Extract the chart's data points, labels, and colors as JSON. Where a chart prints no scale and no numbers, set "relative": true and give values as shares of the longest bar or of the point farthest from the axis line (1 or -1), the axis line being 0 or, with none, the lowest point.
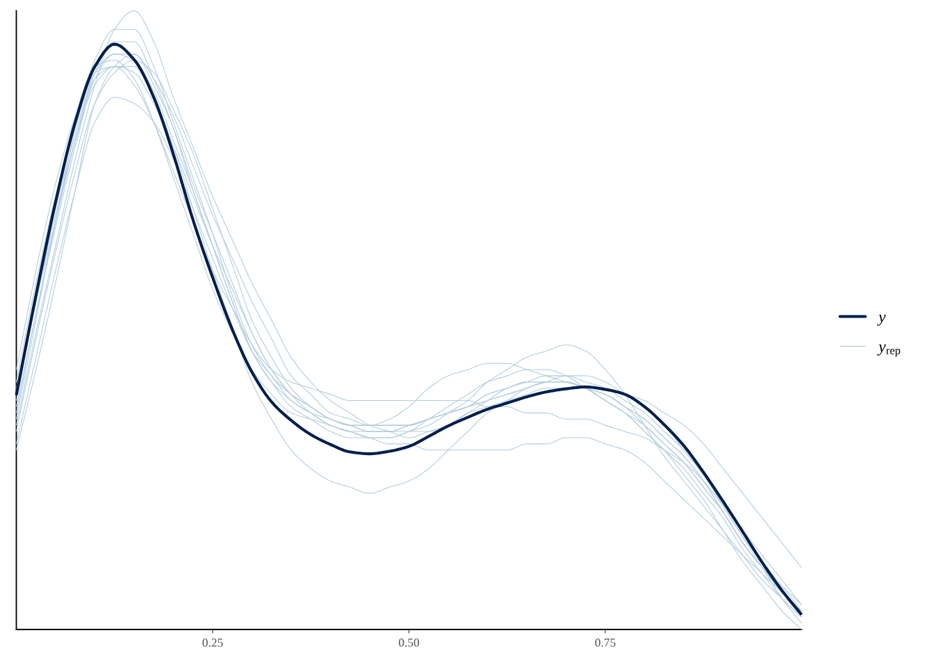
{
  "chart_data": {
    "type": "line",
    "relative": true,
    "legend": "right",
    "tick_labels": "x",
    "xlim": [
      0,
      1
    ],
    "xticks": [
      {
        "value": 0.25,
        "label": "0.25"
      },
      {
        "value": 0.5,
        "label": "0.50"
      },
      {
        "value": 0.75,
        "label": "0.75"
      }
    ],
    "x": [
      0,
      0.025,
      0.05,
      0.075,
      0.1,
      0.125,
      0.15,
      0.175,
      0.2,
      0.225,
      0.25,
      0.275,
      0.3,
      0.325,
      0.35,
      0.375,
      0.4,
      0.425,
      0.45,
      0.475,
      0.5,
      0.525,
      0.55,
      0.575,
      0.6,
      0.625,
      0.65,
      0.675,
      0.7,
      0.725,
      0.75,
      0.775,
      0.8,
      0.825,
      0.85,
      0.875,
      0.9,
      0.925,
      0.95,
      0.975,
      1
    ],
    "series": [
      {
        "name": "y",
        "color": "#011f4b",
        "values": [
          0.379,
          0.54,
          0.691,
          0.82,
          0.91,
          0.946,
          0.921,
          0.86,
          0.768,
          0.662,
          0.569,
          0.485,
          0.416,
          0.368,
          0.338,
          0.315,
          0.299,
          0.287,
          0.284,
          0.288,
          0.296,
          0.312,
          0.329,
          0.343,
          0.356,
          0.366,
          0.376,
          0.384,
          0.389,
          0.392,
          0.388,
          0.38,
          0.36,
          0.331,
          0.297,
          0.254,
          0.207,
          0.158,
          0.108,
          0.063,
          0.024
        ]
      },
      {
        "name": "y$_{rep}$",
        "color": "#b3cde0",
        "values": [
          0.33,
          0.48,
          0.62,
          0.76,
          0.88,
          0.97,
          1.0,
          0.95,
          0.86,
          0.78,
          0.7,
          0.63,
          0.56,
          0.5,
          0.44,
          0.4,
          0.37,
          0.35,
          0.33,
          0.32,
          0.31,
          0.32,
          0.33,
          0.35,
          0.37,
          0.39,
          0.4,
          0.41,
          0.41,
          0.4,
          0.39,
          0.37,
          0.35,
          0.32,
          0.29,
          0.25,
          0.2,
          0.15,
          0.11,
          0.07,
          0.03
        ]
      },
      {
        "color": "#b3cde0",
        "values": [
          0.36,
          0.51,
          0.66,
          0.81,
          0.92,
          0.97,
          0.97,
          0.91,
          0.82,
          0.73,
          0.64,
          0.54,
          0.46,
          0.41,
          0.38,
          0.36,
          0.34,
          0.33,
          0.33,
          0.33,
          0.33,
          0.34,
          0.35,
          0.36,
          0.37,
          0.38,
          0.39,
          0.4,
          0.4,
          0.39,
          0.38,
          0.36,
          0.34,
          0.31,
          0.28,
          0.24,
          0.19,
          0.14,
          0.1,
          0.07,
          0.04
        ]
      },
      {
        "color": "#b3cde0",
        "values": [
          0.3,
          0.44,
          0.58,
          0.71,
          0.82,
          0.86,
          0.85,
          0.82,
          0.76,
          0.68,
          0.6,
          0.52,
          0.45,
          0.41,
          0.37,
          0.35,
          0.33,
          0.32,
          0.31,
          0.31,
          0.32,
          0.34,
          0.36,
          0.38,
          0.4,
          0.41,
          0.42,
          0.42,
          0.41,
          0.39,
          0.37,
          0.35,
          0.32,
          0.29,
          0.26,
          0.22,
          0.18,
          0.13,
          0.09,
          0.05,
          0.02
        ]
      },
      {
        "color": "#b3cde0",
        "values": [
          0.34,
          0.5,
          0.66,
          0.79,
          0.88,
          0.91,
          0.91,
          0.86,
          0.78,
          0.68,
          0.58,
          0.49,
          0.4,
          0.34,
          0.29,
          0.26,
          0.24,
          0.23,
          0.22,
          0.23,
          0.24,
          0.26,
          0.29,
          0.32,
          0.35,
          0.37,
          0.39,
          0.4,
          0.41,
          0.41,
          0.4,
          0.38,
          0.36,
          0.33,
          0.29,
          0.25,
          0.2,
          0.15,
          0.1,
          0.05,
          0.01
        ]
      },
      {
        "color": "#b3cde0",
        "values": [
          0.38,
          0.53,
          0.68,
          0.8,
          0.9,
          0.93,
          0.92,
          0.87,
          0.79,
          0.71,
          0.62,
          0.53,
          0.45,
          0.4,
          0.36,
          0.34,
          0.32,
          0.31,
          0.31,
          0.31,
          0.32,
          0.33,
          0.35,
          0.37,
          0.4,
          0.42,
          0.44,
          0.45,
          0.46,
          0.45,
          0.42,
          0.38,
          0.33,
          0.28,
          0.24,
          0.2,
          0.16,
          0.12,
          0.08,
          0.05,
          0.02
        ]
      },
      {
        "color": "#b3cde0",
        "values": [
          0.4,
          0.56,
          0.7,
          0.81,
          0.9,
          0.91,
          0.88,
          0.82,
          0.74,
          0.66,
          0.58,
          0.52,
          0.46,
          0.42,
          0.4,
          0.39,
          0.38,
          0.37,
          0.37,
          0.37,
          0.37,
          0.37,
          0.37,
          0.37,
          0.36,
          0.36,
          0.35,
          0.35,
          0.34,
          0.34,
          0.33,
          0.32,
          0.31,
          0.29,
          0.27,
          0.24,
          0.2,
          0.16,
          0.12,
          0.08,
          0.04
        ]
      },
      {
        "color": "#b3cde0",
        "values": [
          0.37,
          0.53,
          0.67,
          0.79,
          0.89,
          0.91,
          0.9,
          0.85,
          0.78,
          0.7,
          0.62,
          0.55,
          0.48,
          0.42,
          0.38,
          0.35,
          0.33,
          0.32,
          0.31,
          0.3,
          0.3,
          0.29,
          0.29,
          0.29,
          0.29,
          0.29,
          0.3,
          0.3,
          0.31,
          0.31,
          0.3,
          0.29,
          0.27,
          0.24,
          0.21,
          0.18,
          0.15,
          0.12,
          0.09,
          0.06,
          0.03
        ]
      },
      {
        "color": "#b3cde0",
        "values": [
          0.32,
          0.47,
          0.61,
          0.74,
          0.85,
          0.9,
          0.92,
          0.9,
          0.84,
          0.77,
          0.68,
          0.59,
          0.5,
          0.44,
          0.39,
          0.36,
          0.34,
          0.33,
          0.32,
          0.32,
          0.32,
          0.32,
          0.33,
          0.35,
          0.36,
          0.37,
          0.38,
          0.39,
          0.39,
          0.39,
          0.39,
          0.38,
          0.37,
          0.35,
          0.33,
          0.3,
          0.26,
          0.22,
          0.18,
          0.14,
          0.1
        ]
      },
      {
        "color": "#b3cde0",
        "values": [
          0.42,
          0.58,
          0.72,
          0.83,
          0.91,
          0.92,
          0.89,
          0.82,
          0.73,
          0.64,
          0.55,
          0.48,
          0.42,
          0.38,
          0.35,
          0.34,
          0.33,
          0.32,
          0.32,
          0.32,
          0.33,
          0.34,
          0.35,
          0.36,
          0.38,
          0.39,
          0.4,
          0.4,
          0.4,
          0.39,
          0.38,
          0.36,
          0.33,
          0.3,
          0.27,
          0.23,
          0.19,
          0.14,
          0.1,
          0.06,
          0.02
        ]
      },
      {
        "color": "#b3cde0",
        "values": [
          0.29,
          0.42,
          0.56,
          0.71,
          0.85,
          0.91,
          0.93,
          0.89,
          0.83,
          0.75,
          0.67,
          0.6,
          0.53,
          0.47,
          0.41,
          0.38,
          0.35,
          0.34,
          0.33,
          0.33,
          0.33,
          0.34,
          0.35,
          0.36,
          0.38,
          0.39,
          0.4,
          0.4,
          0.4,
          0.39,
          0.37,
          0.35,
          0.32,
          0.29,
          0.25,
          0.21,
          0.16,
          0.11,
          0.07,
          0.03,
          0.0
        ]
      },
      {
        "color": "#b3cde0",
        "values": [
          0.35,
          0.51,
          0.65,
          0.78,
          0.89,
          0.93,
          0.93,
          0.88,
          0.81,
          0.72,
          0.64,
          0.56,
          0.48,
          0.42,
          0.38,
          0.36,
          0.34,
          0.33,
          0.32,
          0.32,
          0.33,
          0.34,
          0.35,
          0.36,
          0.37,
          0.38,
          0.39,
          0.4,
          0.4,
          0.39,
          0.38,
          0.36,
          0.34,
          0.31,
          0.28,
          0.24,
          0.19,
          0.14,
          0.1,
          0.06,
          0.03
        ]
      },
      {
        "color": "#b3cde0",
        "values": [
          0.39,
          0.53,
          0.66,
          0.79,
          0.9,
          0.95,
          0.95,
          0.89,
          0.81,
          0.71,
          0.62,
          0.53,
          0.45,
          0.4,
          0.37,
          0.35,
          0.34,
          0.33,
          0.33,
          0.34,
          0.36,
          0.39,
          0.41,
          0.42,
          0.43,
          0.43,
          0.42,
          0.41,
          0.4,
          0.39,
          0.37,
          0.35,
          0.33,
          0.3,
          0.27,
          0.23,
          0.19,
          0.14,
          0.1,
          0.06,
          0.03
        ]
      }
    ]
  }
}
